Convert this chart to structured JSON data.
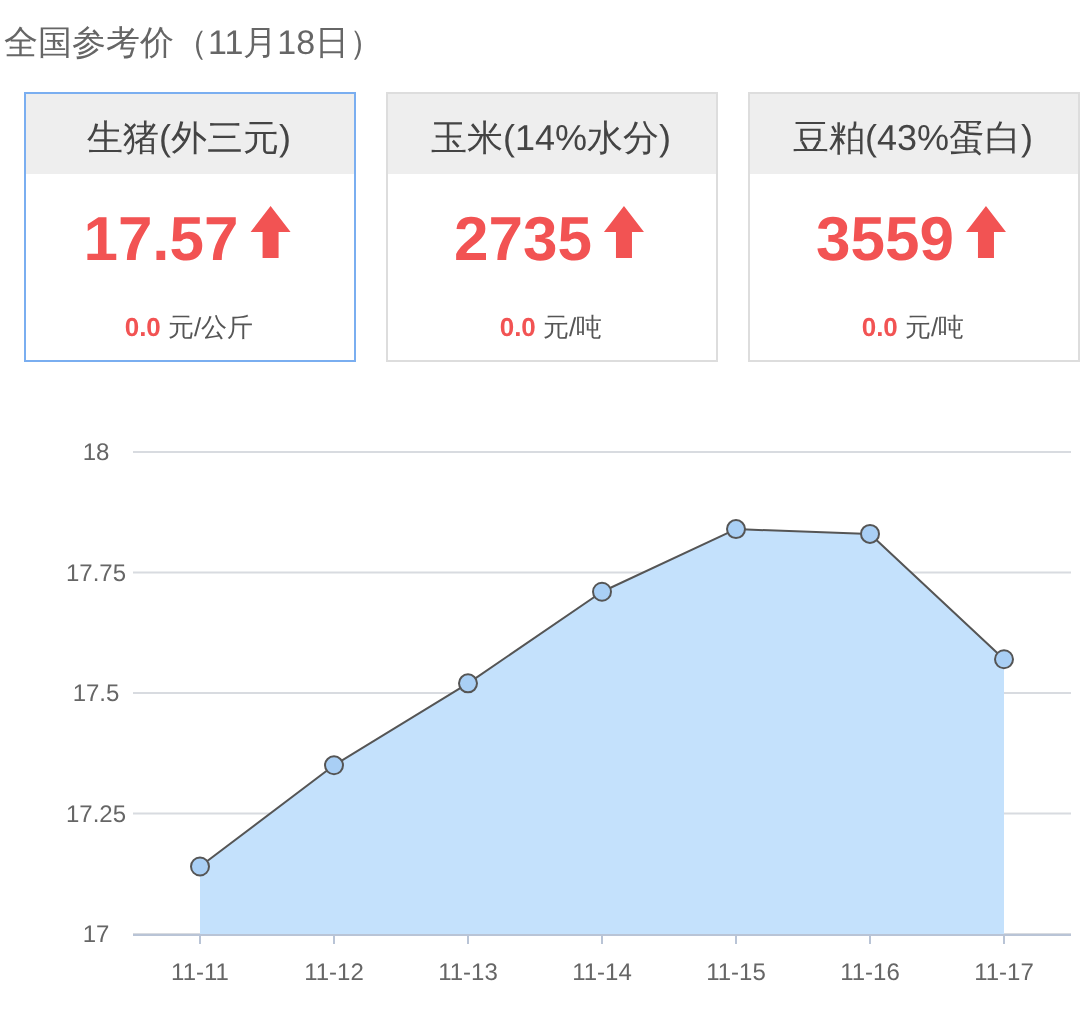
{
  "chart_data": [
    {
      "type": "other",
      "title": "全国参考价（11月18日）",
      "categories": [
        "生猪(外三元)",
        "玉米(14%水分)",
        "豆粕(43%蛋白)"
      ],
      "values": [
        17.57,
        2735,
        3559
      ],
      "data_labels": true,
      "annotations": [
        "0.0 元/公斤",
        "0.0 元/吨",
        "0.0 元/吨"
      ]
    },
    {
      "type": "area",
      "categories": [
        "11-11",
        "11-12",
        "11-13",
        "11-14",
        "11-15",
        "11-16",
        "11-17"
      ],
      "series": [
        {
          "color": "#c4e1fc",
          "values": [
            17.14,
            17.35,
            17.52,
            17.71,
            17.84,
            17.83,
            17.57
          ]
        }
      ],
      "ylim": [
        17,
        18
      ],
      "yticks": [
        17,
        17.25,
        17.5,
        17.75,
        18
      ],
      "grid": "y",
      "marker": "circle"
    }
  ]
}
